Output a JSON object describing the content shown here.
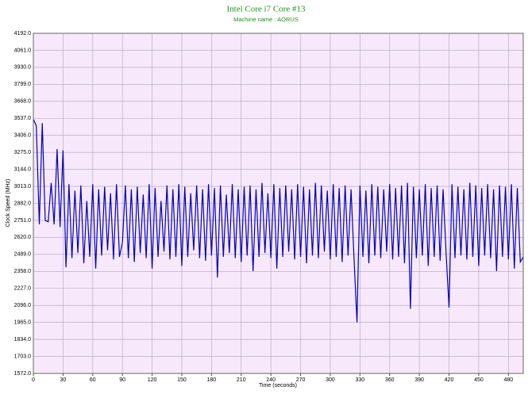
{
  "chart_data": {
    "type": "line",
    "title": "Intel Core i7 Core #13",
    "subtitle": "Machine name : AORUS",
    "x_label": "Time (seconds)",
    "y_label": "Clock Speed (MHz)",
    "xlim": [
      0,
      495
    ],
    "xticks": [
      0,
      30,
      60,
      90,
      120,
      150,
      180,
      210,
      240,
      270,
      300,
      330,
      360,
      390,
      420,
      450,
      480
    ],
    "ylim": [
      1572,
      4192
    ],
    "yticks": [
      {
        "value": 1572,
        "label": "1572.0"
      },
      {
        "value": 1703,
        "label": "1703.0"
      },
      {
        "value": 1834,
        "label": "1834.0"
      },
      {
        "value": 1965,
        "label": "1965.0"
      },
      {
        "value": 2096,
        "label": "2096.0"
      },
      {
        "value": 2227,
        "label": "2227.0"
      },
      {
        "value": 2358,
        "label": "2358.0"
      },
      {
        "value": 2489,
        "label": "2489.0"
      },
      {
        "value": 2620,
        "label": "2620.0"
      },
      {
        "value": 2751,
        "label": "2751.0"
      },
      {
        "value": 2882,
        "label": "2882.0"
      },
      {
        "value": 3013,
        "label": "3013.0"
      },
      {
        "value": 3144,
        "label": "3144.0"
      },
      {
        "value": 3275,
        "label": "3275.0"
      },
      {
        "value": 3406,
        "label": "3406.0"
      },
      {
        "value": 3537,
        "label": "3537.0"
      },
      {
        "value": 3668,
        "label": "3668.0"
      },
      {
        "value": 3799,
        "label": "3799.0"
      },
      {
        "value": 3930,
        "label": "3930.0"
      },
      {
        "value": 4061,
        "label": "4061.0"
      },
      {
        "value": 4192,
        "label": "4192.0"
      }
    ],
    "grid": true,
    "x": [
      0,
      3,
      6,
      9,
      12,
      15,
      18,
      21,
      24,
      27,
      30,
      33,
      36,
      39,
      42,
      45,
      48,
      51,
      54,
      57,
      60,
      63,
      66,
      69,
      72,
      75,
      78,
      81,
      84,
      87,
      90,
      93,
      96,
      99,
      102,
      105,
      108,
      111,
      114,
      117,
      120,
      123,
      126,
      129,
      132,
      135,
      138,
      141,
      144,
      147,
      150,
      153,
      156,
      159,
      162,
      165,
      168,
      171,
      174,
      177,
      180,
      183,
      186,
      189,
      192,
      195,
      198,
      201,
      204,
      207,
      210,
      213,
      216,
      219,
      222,
      225,
      228,
      231,
      234,
      237,
      240,
      243,
      246,
      249,
      252,
      255,
      258,
      261,
      264,
      267,
      270,
      273,
      276,
      279,
      282,
      285,
      288,
      291,
      294,
      297,
      300,
      303,
      306,
      309,
      312,
      315,
      318,
      321,
      324,
      327,
      330,
      333,
      336,
      339,
      342,
      345,
      348,
      351,
      354,
      357,
      360,
      363,
      366,
      369,
      372,
      375,
      378,
      381,
      384,
      387,
      390,
      393,
      396,
      399,
      402,
      405,
      408,
      411,
      414,
      417,
      420,
      423,
      426,
      429,
      432,
      435,
      438,
      441,
      444,
      447,
      450,
      453,
      456,
      459,
      462,
      465,
      468,
      471,
      474,
      477,
      480,
      483,
      486,
      489,
      492,
      495
    ],
    "series": [
      {
        "name": "Clock Speed",
        "color": "#0000c0",
        "values": [
          3530,
          3480,
          2720,
          3500,
          2750,
          2740,
          3040,
          2720,
          3300,
          2700,
          3290,
          2390,
          3030,
          2460,
          2980,
          2500,
          3020,
          2420,
          2900,
          2470,
          3030,
          2380,
          2990,
          2480,
          3010,
          2520,
          2960,
          2450,
          3030,
          2470,
          2580,
          3020,
          2460,
          2990,
          2430,
          3010,
          2500,
          2950,
          2460,
          3030,
          2380,
          3000,
          2470,
          2900,
          2510,
          3020,
          2450,
          2990,
          2470,
          3030,
          2400,
          3010,
          2470,
          2960,
          2520,
          3020,
          2460,
          2990,
          2440,
          3030,
          2480,
          3000,
          2310,
          3020,
          2470,
          2950,
          2500,
          3030,
          2460,
          2990,
          2430,
          3010,
          2480,
          3020,
          2360,
          2990,
          2470,
          3040,
          2500,
          2960,
          2460,
          3030,
          2380,
          3000,
          2470,
          3020,
          2510,
          2990,
          2450,
          3030,
          2470,
          3010,
          2420,
          2990,
          2480,
          3040,
          2460,
          3020,
          2510,
          2980,
          2450,
          3030,
          2470,
          3000,
          2430,
          3020,
          2480,
          2990,
          2460,
          1965,
          3020,
          2470,
          2980,
          2420,
          3030,
          2480,
          3010,
          2460,
          2990,
          2510,
          3030,
          2450,
          3000,
          2470,
          3020,
          2420,
          3040,
          2070,
          3010,
          2460,
          2990,
          2480,
          3030,
          2400,
          3000,
          2470,
          3020,
          2440,
          2990,
          2500,
          2080,
          3030,
          2460,
          3010,
          2480,
          2990,
          2450,
          3040,
          2470,
          3020,
          2400,
          3000,
          2480,
          3030,
          2460,
          2990,
          2360,
          3020,
          2470,
          3010,
          2450,
          3030,
          2380,
          3000,
          2430,
          2470
        ]
      }
    ]
  }
}
